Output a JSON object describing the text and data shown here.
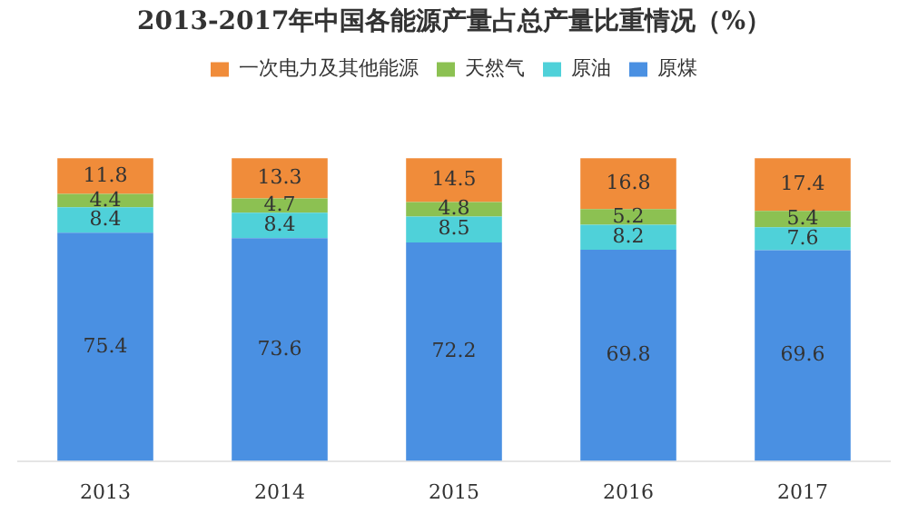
{
  "chart_data": {
    "type": "bar",
    "title": "2013-2017年中国各能源产量占总产量比重情况（%）",
    "stacked": true,
    "data_labels": true,
    "legend": "top",
    "categories": [
      "2013",
      "2014",
      "2015",
      "2016",
      "2017"
    ],
    "series": [
      {
        "name": "原煤",
        "color": "#4a90e2",
        "values": [
          75.4,
          73.6,
          72.2,
          69.8,
          69.6
        ]
      },
      {
        "name": "原油",
        "color": "#4fd1d9",
        "values": [
          8.4,
          8.4,
          8.5,
          8.2,
          7.6
        ]
      },
      {
        "name": "天然气",
        "color": "#8cc152",
        "values": [
          4.4,
          4.7,
          4.8,
          5.2,
          5.4
        ]
      },
      {
        "name": "一次电力及其他能源",
        "color": "#f08c3a",
        "values": [
          11.8,
          13.3,
          14.5,
          16.8,
          17.4
        ]
      }
    ]
  }
}
